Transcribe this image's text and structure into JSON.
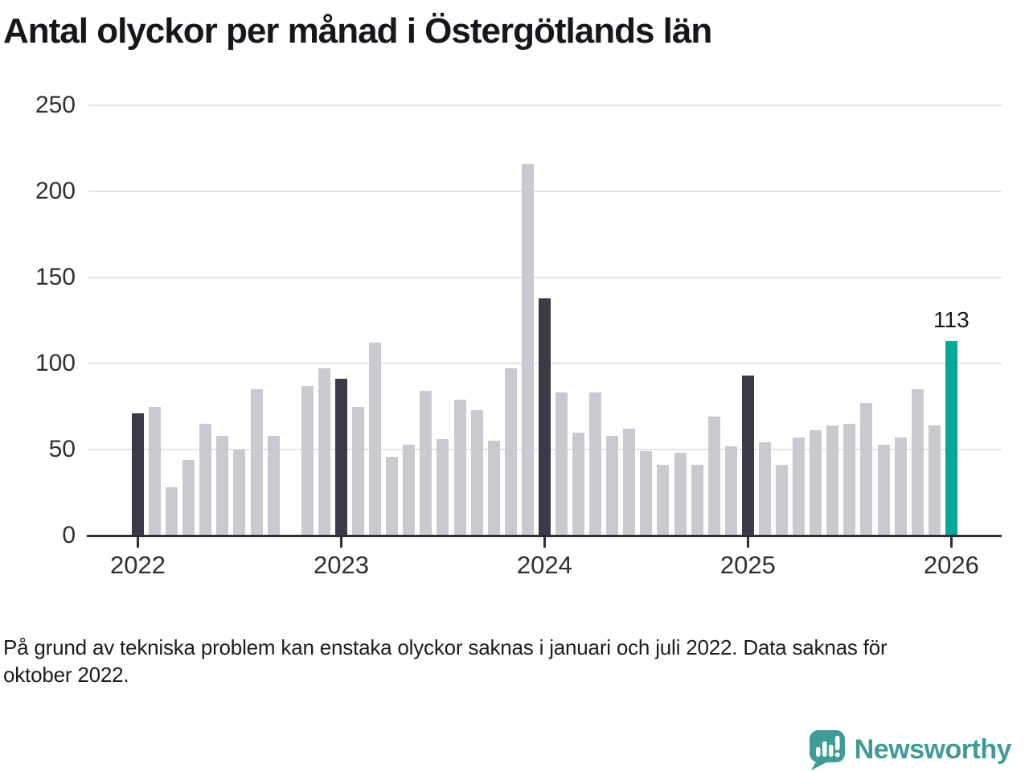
{
  "title": "Antal olyckor per månad i Östergötlands län",
  "footnote_lines": [
    "På grund av tekniska problem kan enstaka olyckor saknas i januari och juli 2022. Data saknas för",
    "oktober 2022."
  ],
  "annotation": {
    "text": "113"
  },
  "branding": {
    "name": "Newsworthy",
    "icon": "bar-chart-speech-bubble-icon",
    "color": "#3e9b96"
  },
  "colors": {
    "bar_default": "#c9c9d2",
    "bar_january": "#3a3a48",
    "bar_latest": "#06a698",
    "axis": "#2e2e3b",
    "gridline": "#e4e4e8",
    "label_text": "#2e2e33",
    "title_text": "#16161d"
  },
  "chart_data": {
    "type": "bar",
    "title": "Antal olyckor per månad i Östergötlands län",
    "xlabel": "",
    "ylabel": "",
    "ylim": [
      0,
      250
    ],
    "yticks": [
      0,
      50,
      100,
      150,
      200,
      250
    ],
    "xticks": [
      "2022",
      "2023",
      "2024",
      "2025",
      "2026"
    ],
    "grid": "horizontal",
    "legend": "none",
    "highlight_rule": "january bars dark, latest bar teal with value label, october 2022 missing",
    "months": [
      {
        "month": "2022-01",
        "value": 71,
        "style": "january"
      },
      {
        "month": "2022-02",
        "value": 75,
        "style": "default"
      },
      {
        "month": "2022-03",
        "value": 28,
        "style": "default"
      },
      {
        "month": "2022-04",
        "value": 44,
        "style": "default"
      },
      {
        "month": "2022-05",
        "value": 65,
        "style": "default"
      },
      {
        "month": "2022-06",
        "value": 58,
        "style": "default"
      },
      {
        "month": "2022-07",
        "value": 50,
        "style": "default"
      },
      {
        "month": "2022-08",
        "value": 85,
        "style": "default"
      },
      {
        "month": "2022-09",
        "value": 58,
        "style": "default"
      },
      {
        "month": "2022-10",
        "value": null,
        "style": "missing"
      },
      {
        "month": "2022-11",
        "value": 87,
        "style": "default"
      },
      {
        "month": "2022-12",
        "value": 97,
        "style": "default"
      },
      {
        "month": "2023-01",
        "value": 91,
        "style": "january"
      },
      {
        "month": "2023-02",
        "value": 75,
        "style": "default"
      },
      {
        "month": "2023-03",
        "value": 112,
        "style": "default"
      },
      {
        "month": "2023-04",
        "value": 46,
        "style": "default"
      },
      {
        "month": "2023-05",
        "value": 53,
        "style": "default"
      },
      {
        "month": "2023-06",
        "value": 84,
        "style": "default"
      },
      {
        "month": "2023-07",
        "value": 56,
        "style": "default"
      },
      {
        "month": "2023-08",
        "value": 79,
        "style": "default"
      },
      {
        "month": "2023-09",
        "value": 73,
        "style": "default"
      },
      {
        "month": "2023-10",
        "value": 55,
        "style": "default"
      },
      {
        "month": "2023-11",
        "value": 97,
        "style": "default"
      },
      {
        "month": "2023-12",
        "value": 216,
        "style": "default"
      },
      {
        "month": "2024-01",
        "value": 138,
        "style": "january"
      },
      {
        "month": "2024-02",
        "value": 83,
        "style": "default"
      },
      {
        "month": "2024-03",
        "value": 60,
        "style": "default"
      },
      {
        "month": "2024-04",
        "value": 83,
        "style": "default"
      },
      {
        "month": "2024-05",
        "value": 58,
        "style": "default"
      },
      {
        "month": "2024-06",
        "value": 62,
        "style": "default"
      },
      {
        "month": "2024-07",
        "value": 49,
        "style": "default"
      },
      {
        "month": "2024-08",
        "value": 41,
        "style": "default"
      },
      {
        "month": "2024-09",
        "value": 48,
        "style": "default"
      },
      {
        "month": "2024-10",
        "value": 41,
        "style": "default"
      },
      {
        "month": "2024-11",
        "value": 69,
        "style": "default"
      },
      {
        "month": "2024-12",
        "value": 52,
        "style": "default"
      },
      {
        "month": "2025-01",
        "value": 93,
        "style": "january"
      },
      {
        "month": "2025-02",
        "value": 54,
        "style": "default"
      },
      {
        "month": "2025-03",
        "value": 41,
        "style": "default"
      },
      {
        "month": "2025-04",
        "value": 57,
        "style": "default"
      },
      {
        "month": "2025-05",
        "value": 61,
        "style": "default"
      },
      {
        "month": "2025-06",
        "value": 64,
        "style": "default"
      },
      {
        "month": "2025-07",
        "value": 65,
        "style": "default"
      },
      {
        "month": "2025-08",
        "value": 77,
        "style": "default"
      },
      {
        "month": "2025-09",
        "value": 53,
        "style": "default"
      },
      {
        "month": "2025-10",
        "value": 57,
        "style": "default"
      },
      {
        "month": "2025-11",
        "value": 85,
        "style": "default"
      },
      {
        "month": "2025-12",
        "value": 64,
        "style": "default"
      },
      {
        "month": "2026-01",
        "value": 113,
        "style": "latest"
      }
    ]
  }
}
